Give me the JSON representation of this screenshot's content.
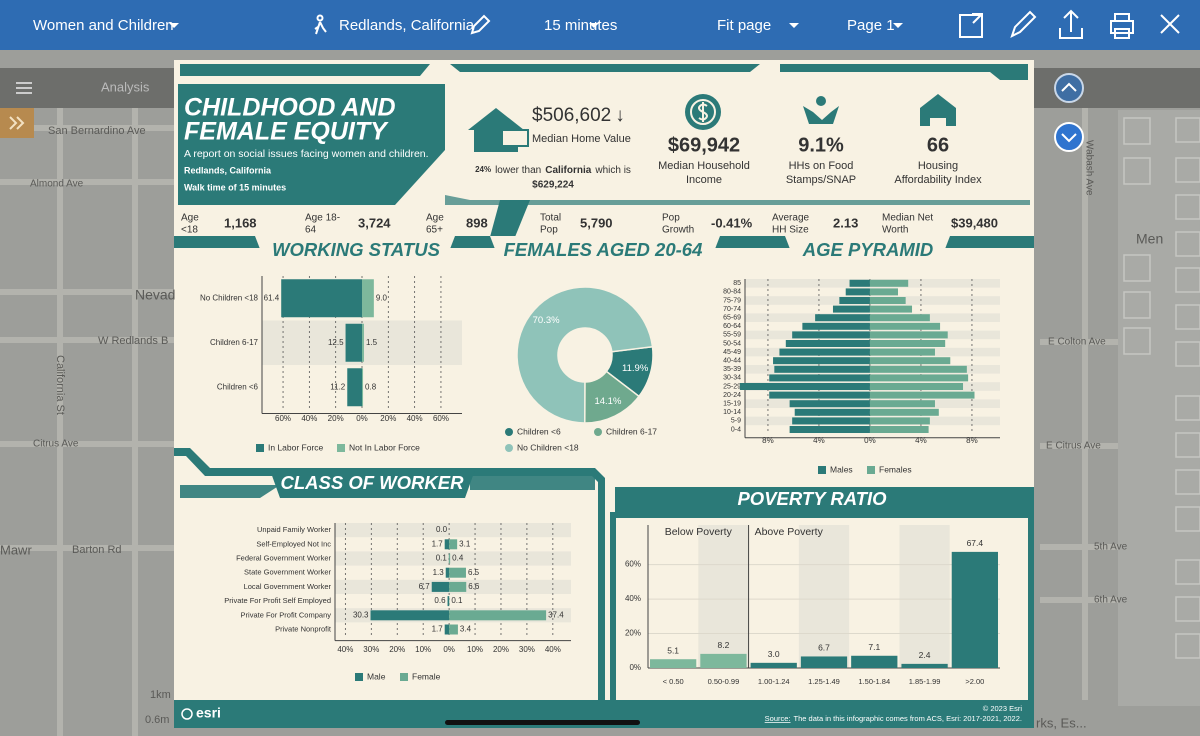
{
  "toolbar": {
    "report": "Women and Children",
    "location": "Redlands, California",
    "time": "15 minutes",
    "zoom": "Fit page",
    "page": "Page 1"
  },
  "app_bar": {
    "tab": "Analysis"
  },
  "map_labels": [
    "San Bernardino Ave",
    "Almond Ave",
    "Nevad",
    "W Redlands B",
    "California St",
    "Citrus Ave",
    "Mawr",
    "Barton Rd",
    "1km",
    "0.6m",
    "Men",
    "E Colton Ave",
    "E Citrus Ave",
    "5th Ave",
    "6th Ave",
    "Wabash Ave",
    "rks, Es..."
  ],
  "infographic": {
    "title_lines": [
      "CHILDHOOD AND",
      "FEMALE EQUITY"
    ],
    "subtitle": "A report on social issues facing women and children.",
    "location": "Redlands, California",
    "walk": "Walk time of 15 minutes",
    "home": {
      "value": "$506,602",
      "trend": "↓",
      "label": "Median Home Value",
      "pct": "24%",
      "text1": "lower than",
      "place": "California",
      "text2": "which is",
      "compare": "$629,224"
    },
    "kpis": [
      {
        "value": "$69,942",
        "label_lines": [
          "Median Household",
          "Income"
        ]
      },
      {
        "value": "9.1%",
        "label_lines": [
          "HHs on Food",
          "Stamps/SNAP"
        ]
      },
      {
        "value": "66",
        "label_lines": [
          "Housing",
          "Affordability Index"
        ]
      }
    ],
    "stats": [
      {
        "label_lines": [
          "Age",
          "<18"
        ],
        "value": "1,168"
      },
      {
        "label_lines": [
          "Age 18-",
          "64"
        ],
        "value": "3,724"
      },
      {
        "label_lines": [
          "Age",
          "65+"
        ],
        "value": "898"
      },
      {
        "label_lines": [
          "Total",
          "Pop"
        ],
        "value": "5,790"
      },
      {
        "label_lines": [
          "Pop",
          "Growth"
        ],
        "value": "-0.41%"
      },
      {
        "label_lines": [
          "Average",
          "HH Size"
        ],
        "value": "2.13"
      },
      {
        "label_lines": [
          "Median Net",
          "Worth"
        ],
        "value": "$39,480"
      }
    ],
    "charts": {
      "working_status": {
        "type": "bar",
        "orientation": "horizontal",
        "title": "WORKING STATUS",
        "categories": [
          "No Children <18",
          "Children 6-17",
          "Children <6"
        ],
        "series": [
          {
            "name": "In Labor Force",
            "side": "left",
            "color": "#2b7a78",
            "values": [
              61.4,
              12.5,
              11.2
            ],
            "value_labels": [
              "61.4",
              "12.5",
              "11.2"
            ]
          },
          {
            "name": "Not In Labor Force",
            "side": "right",
            "color": "#7db89c",
            "values": [
              9.0,
              1.5,
              0.8
            ],
            "value_labels": [
              "9.0",
              "1.5",
              "0.8"
            ]
          }
        ],
        "xlim": [
          -76,
          76
        ],
        "xticks": [
          {
            "value": -60,
            "label": "60%"
          },
          {
            "value": -40,
            "label": "40%"
          },
          {
            "value": -20,
            "label": "20%"
          },
          {
            "value": 0,
            "label": "0%"
          },
          {
            "value": 20,
            "label": "20%"
          },
          {
            "value": 40,
            "label": "40%"
          },
          {
            "value": 60,
            "label": "60%"
          }
        ],
        "grid": true
      },
      "females": {
        "type": "pie",
        "title": "FEMALES AGED 20-64",
        "categories": [
          "Children <6",
          "Children 6-17",
          "No Children <18"
        ],
        "values": [
          11.9,
          14.1,
          70.3
        ],
        "value_labels": [
          "11.9%",
          "14.1%",
          "70.3%"
        ],
        "colors": [
          "#2b7a78",
          "#6fa98e",
          "#8fc3b9"
        ]
      },
      "age_pyramid": {
        "type": "bar",
        "orientation": "horizontal",
        "title": "AGE PYRAMID",
        "categories": [
          "85",
          "80-84",
          "75-79",
          "70-74",
          "65-69",
          "60-64",
          "55-59",
          "50-54",
          "45-49",
          "40-44",
          "35-39",
          "30-34",
          "25-29",
          "20-24",
          "15-19",
          "10-14",
          "5-9",
          "0-4"
        ],
        "series": [
          {
            "name": "Males",
            "side": "left",
            "color": "#2b7a78",
            "values": [
              1.6,
              1.9,
              2.4,
              2.9,
              4.3,
              5.3,
              6.1,
              6.6,
              7.1,
              7.6,
              7.5,
              7.9,
              10.2,
              7.9,
              6.3,
              5.9,
              6.1,
              6.3
            ]
          },
          {
            "name": "Females",
            "side": "right",
            "color": "#6aaa92",
            "values": [
              3.0,
              2.2,
              2.8,
              3.3,
              4.7,
              5.5,
              6.1,
              5.9,
              5.1,
              6.3,
              7.6,
              7.7,
              7.3,
              8.2,
              5.1,
              5.4,
              4.7,
              4.6
            ]
          }
        ],
        "xlim": [
          -9.8,
          10.2
        ],
        "xticks": [
          {
            "value": -8,
            "label": "8%"
          },
          {
            "value": -4,
            "label": "4%"
          },
          {
            "value": 0,
            "label": "0%"
          },
          {
            "value": 4,
            "label": "4%"
          },
          {
            "value": 8,
            "label": "8%"
          }
        ],
        "grid": true
      },
      "class_of_worker": {
        "type": "bar",
        "orientation": "horizontal",
        "title": "CLASS OF WORKER",
        "categories": [
          "Unpaid Family Worker",
          "Self-Employed Not Inc",
          "Federal Government Worker",
          "State Government Worker",
          "Local Government Worker",
          "Private For Profit Self Employed",
          "Private For Profit Company",
          "Private Nonprofit"
        ],
        "series": [
          {
            "name": "Male",
            "side": "left",
            "color": "#2b7a78",
            "values": [
              0.0,
              1.7,
              0.1,
              1.3,
              6.7,
              0.6,
              30.3,
              1.7
            ],
            "value_labels": [
              "0.0",
              "1.7",
              "0.1",
              "1.3",
              "6.7",
              "0.6",
              "30.3",
              "1.7"
            ]
          },
          {
            "name": "Female",
            "side": "right",
            "color": "#6aaa92",
            "values": [
              null,
              3.1,
              0.4,
              6.5,
              6.6,
              0.1,
              37.4,
              3.4
            ],
            "value_labels": [
              null,
              "3.1",
              "0.4",
              "6.5",
              "6.6",
              "0.1",
              "37.4",
              "3.4"
            ]
          }
        ],
        "xlim": [
          -44,
          47
        ],
        "xticks": [
          {
            "value": -40,
            "label": "40%"
          },
          {
            "value": -30,
            "label": "30%"
          },
          {
            "value": -20,
            "label": "20%"
          },
          {
            "value": -10,
            "label": "10%"
          },
          {
            "value": 0,
            "label": "0%"
          },
          {
            "value": 10,
            "label": "10%"
          },
          {
            "value": 20,
            "label": "20%"
          },
          {
            "value": 30,
            "label": "30%"
          },
          {
            "value": 40,
            "label": "40%"
          }
        ],
        "grid": true
      },
      "poverty_ratio": {
        "type": "bar",
        "title": "POVERTY RATIO",
        "annotations": [
          "Below Poverty",
          "Above Poverty"
        ],
        "categories": [
          "< 0.50",
          "0.50-0.99",
          "1.00-1.24",
          "1.25-1.49",
          "1.50-1.84",
          "1.85-1.99",
          ">2.00"
        ],
        "values": [
          5.1,
          8.2,
          3.0,
          6.7,
          7.1,
          2.4,
          67.4
        ],
        "value_labels": [
          "5.1",
          "8.2",
          "3.0",
          "6.7",
          "7.1",
          "2.4",
          "67.4"
        ],
        "colors": [
          "#7db89c",
          "#7db89c",
          "#2b7a78",
          "#2b7a78",
          "#2b7a78",
          "#2b7a78",
          "#2b7a78"
        ],
        "ylim": [
          0,
          83
        ],
        "yticks": [
          {
            "value": 0,
            "label": "0%"
          },
          {
            "value": 20,
            "label": "20%"
          },
          {
            "value": 40,
            "label": "40%"
          },
          {
            "value": 60,
            "label": "60%"
          }
        ],
        "grid": true
      }
    },
    "footer": {
      "logo": "esri",
      "copyright": "© 2023 Esri",
      "source_label": "Source:",
      "source": "The data in this infographic comes from ACS, Esri: 2017-2021, 2022."
    }
  }
}
